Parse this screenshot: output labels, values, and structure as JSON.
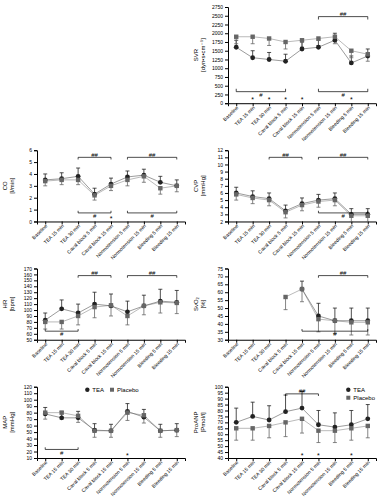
{
  "chart_data": [
    {
      "type": "line",
      "ylabel": "SVR\n[dyn•s•cm⁻⁵]",
      "categories": [
        "Baseline",
        "TEA 15 min",
        "TEA 30 min",
        "Caval block 5 min",
        "Caval block 15 min",
        "Normotension 5 min",
        "Normotension 15 min",
        "Bleeding 5 min",
        "Bleeding 15 min"
      ],
      "ylim": [
        0,
        2750
      ],
      "yticks": [
        0,
        250,
        500,
        750,
        1000,
        1250,
        1500,
        1750,
        2000,
        2250,
        2500,
        2750
      ],
      "grid": false,
      "series": [
        {
          "name": "TEA",
          "color": "#222222",
          "marker": "circle",
          "values": [
            1600,
            1300,
            1250,
            1200,
            1550,
            1600,
            1800,
            1150,
            1350
          ],
          "error_plus": [
            200,
            200,
            200,
            200,
            200,
            200,
            200,
            200,
            200
          ]
        },
        {
          "name": "Placebo",
          "color": "#666666",
          "marker": "square",
          "values": [
            1900,
            1900,
            1850,
            1750,
            1800,
            1850,
            1900,
            1500,
            1400
          ],
          "error_minus": [
            200,
            200,
            200,
            200,
            200,
            200,
            200,
            200,
            200
          ]
        }
      ],
      "annotations": [
        {
          "text": "##",
          "x": [
            "Normotension 5 min",
            "Bleeding 15 min"
          ],
          "series": "TEA"
        },
        {
          "text": "#",
          "x": [
            "Baseline",
            "Caval block 5 min"
          ],
          "series": "Placebo"
        },
        {
          "text": "#",
          "x": [
            "Normotension 5 min",
            "Bleeding 15 min"
          ],
          "series": "Placebo"
        },
        {
          "text": "*",
          "x": "TEA 15 min"
        },
        {
          "text": "*",
          "x": "TEA 30 min"
        },
        {
          "text": "*",
          "x": "Caval block 5 min"
        },
        {
          "text": "*",
          "x": "Caval block 15 min"
        },
        {
          "text": "*",
          "x": "Bleeding 5 min"
        }
      ]
    },
    {
      "type": "line",
      "ylabel": "CO\n[l/min]",
      "categories": [
        "Baseline",
        "TEA 15 min",
        "TEA 30 min",
        "Caval block 5 min",
        "Caval block 15 min",
        "Normotension 5 min",
        "Normotension 15 min",
        "Bleeding 5 min",
        "Bleeding 15 min"
      ],
      "ylim": [
        0,
        6
      ],
      "yticks": [
        0,
        1,
        2,
        3,
        4,
        5,
        6
      ],
      "grid": false,
      "series": [
        {
          "name": "TEA",
          "color": "#222222",
          "marker": "circle",
          "values": [
            3.5,
            3.6,
            3.8,
            2.3,
            3.15,
            3.75,
            3.9,
            3.3,
            3.0
          ],
          "error_plus": [
            0.5,
            0.5,
            0.7,
            0.5,
            0.5,
            0.5,
            0.5,
            0.5,
            0.5
          ]
        },
        {
          "name": "Placebo",
          "color": "#666666",
          "marker": "square",
          "values": [
            3.4,
            3.5,
            3.5,
            2.2,
            3.0,
            3.5,
            3.8,
            2.8,
            3.0
          ],
          "error_minus": [
            0.4,
            0.4,
            0.4,
            0.4,
            0.4,
            0.5,
            0.5,
            0.5,
            0.5
          ]
        }
      ],
      "annotations": [
        {
          "text": "##",
          "x": [
            "TEA 30 min",
            "Caval block 15 min"
          ],
          "series": "TEA"
        },
        {
          "text": "##",
          "x": [
            "Normotension 5 min",
            "Bleeding 15 min"
          ],
          "series": "TEA"
        },
        {
          "text": "#",
          "x": [
            "TEA 30 min",
            "Caval block 15 min"
          ],
          "series": "Placebo"
        },
        {
          "text": "#",
          "x": [
            "Normotension 5 min",
            "Bleeding 15 min"
          ],
          "series": "Placebo"
        },
        {
          "text": "*",
          "x": "Caval block 15 min"
        }
      ]
    },
    {
      "type": "line",
      "ylabel": "CVP\n[mmHg]",
      "categories": [
        "Baseline",
        "TEA 15 min",
        "TEA 30 min",
        "Caval block 5 min",
        "Caval block 15 min",
        "Normotension 5 min",
        "Normotension 15 min",
        "Bleeding 5 min",
        "Bleeding 15 min"
      ],
      "ylim": [
        2,
        12
      ],
      "yticks": [
        2,
        3,
        4,
        5,
        6,
        7,
        8,
        9,
        10,
        11,
        12
      ],
      "grid": false,
      "series": [
        {
          "name": "TEA",
          "color": "#222222",
          "marker": "circle",
          "values": [
            6.0,
            5.5,
            5.2,
            3.5,
            4.5,
            5.0,
            5.2,
            3.0,
            3.0
          ],
          "error_plus": [
            0.8,
            0.8,
            0.8,
            0.8,
            0.8,
            0.8,
            0.8,
            0.8,
            0.8
          ]
        },
        {
          "name": "Placebo",
          "color": "#666666",
          "marker": "square",
          "values": [
            5.8,
            5.3,
            5.0,
            3.3,
            4.3,
            4.8,
            5.0,
            2.8,
            2.8
          ],
          "error_minus": [
            0.8,
            0.8,
            0.8,
            0.8,
            0.8,
            0.8,
            0.8,
            0.8,
            0.8
          ]
        }
      ],
      "annotations": [
        {
          "text": "##",
          "x": [
            "TEA 30 min",
            "Caval block 15 min"
          ],
          "series": "TEA"
        },
        {
          "text": "##",
          "x": [
            "Normotension 5 min",
            "Bleeding 15 min"
          ],
          "series": "TEA"
        },
        {
          "text": "#",
          "x": [
            "Normotension 5 min",
            "Bleeding 15 min"
          ],
          "series": "Placebo"
        }
      ]
    },
    {
      "type": "line",
      "ylabel": "HR\n[bpm]",
      "categories": [
        "Baseline",
        "TEA 15 min",
        "TEA 30 min",
        "Caval block 5 min",
        "Caval block 15 min",
        "Normotension 5 min",
        "Normotension 15 min",
        "Bleeding 5 min",
        "Bleeding 15 min"
      ],
      "ylim": [
        50,
        170
      ],
      "yticks": [
        50,
        60,
        70,
        80,
        90,
        100,
        110,
        120,
        130,
        140,
        150,
        160,
        170
      ],
      "grid": false,
      "series": [
        {
          "name": "TEA",
          "color": "#222222",
          "marker": "circle",
          "values": [
            83,
            102,
            95,
            110,
            107,
            97,
            107,
            115,
            113
          ],
          "error_plus": [
            12,
            15,
            15,
            20,
            20,
            18,
            18,
            20,
            20
          ]
        },
        {
          "name": "Placebo",
          "color": "#666666",
          "marker": "square",
          "values": [
            80,
            80,
            90,
            105,
            108,
            90,
            107,
            113,
            112
          ],
          "error_minus": [
            12,
            12,
            15,
            18,
            18,
            15,
            15,
            18,
            18
          ]
        }
      ],
      "annotations": [
        {
          "text": "##",
          "x": [
            "TEA 30 min",
            "Caval block 15 min"
          ],
          "series": "TEA"
        },
        {
          "text": "##",
          "x": [
            "Normotension 5 min",
            "Bleeding 15 min"
          ],
          "series": "TEA"
        },
        {
          "text": "#",
          "x": [
            "Baseline",
            "TEA 30 min"
          ],
          "series": "Placebo"
        }
      ]
    },
    {
      "type": "line",
      "ylabel": "SvO₂\n[%]",
      "categories": [
        "Baseline",
        "TEA 15 min",
        "TEA 30 min",
        "Caval block 5 min",
        "Caval block 15 min",
        "Normotension 5 min",
        "Normotension 15 min",
        "Bleeding 5 min",
        "Bleeding 15 min"
      ],
      "ylim": [
        30,
        75
      ],
      "yticks": [
        30,
        35,
        40,
        45,
        50,
        55,
        60,
        65,
        70,
        75
      ],
      "grid": false,
      "series": [
        {
          "name": "TEA",
          "color": "#222222",
          "marker": "circle",
          "values": [
            null,
            null,
            null,
            null,
            62,
            45,
            42,
            42,
            42
          ],
          "error_plus": [
            null,
            null,
            null,
            null,
            5,
            8,
            8,
            8,
            8
          ]
        },
        {
          "name": "Placebo",
          "color": "#666666",
          "marker": "square",
          "values": [
            null,
            null,
            null,
            57,
            62,
            43,
            42,
            41,
            41
          ],
          "error_minus": [
            null,
            null,
            null,
            8,
            8,
            8,
            8,
            8,
            8
          ]
        }
      ],
      "annotations": [
        {
          "text": "##",
          "x": [
            "Normotension 5 min",
            "Bleeding 15 min"
          ],
          "series": "TEA"
        },
        {
          "text": "#",
          "x": [
            "Caval block 15 min",
            "Bleeding 15 min"
          ],
          "series": "Placebo"
        }
      ]
    },
    {
      "type": "line",
      "ylabel": "MAP\n[mmHg]",
      "categories": [
        "Baseline",
        "TEA 15 min",
        "TEA 30 min",
        "Caval block 5 min",
        "Caval block 15 min",
        "Normotension 5 min",
        "Normotension 15 min",
        "Bleeding 5 min",
        "Bleeding 15 min"
      ],
      "ylim": [
        10,
        120
      ],
      "yticks": [
        10,
        20,
        30,
        40,
        50,
        60,
        70,
        80,
        90,
        100,
        110,
        120
      ],
      "grid": false,
      "legend": "top",
      "series": [
        {
          "name": "TEA",
          "color": "#222222",
          "marker": "circle",
          "values": [
            78,
            72,
            72,
            53,
            52,
            82,
            73,
            52,
            53
          ],
          "error_plus": [
            10,
            10,
            10,
            10,
            10,
            12,
            12,
            10,
            10
          ]
        },
        {
          "name": "Placebo",
          "color": "#666666",
          "marker": "square",
          "values": [
            80,
            80,
            75,
            52,
            52,
            80,
            76,
            52,
            53
          ],
          "error_minus": [
            10,
            10,
            10,
            10,
            10,
            12,
            12,
            10,
            10
          ]
        }
      ],
      "annotations": [
        {
          "text": "#",
          "x": [
            "Baseline",
            "TEA 30 min"
          ],
          "series": "Placebo"
        },
        {
          "text": "*",
          "x": "Normotension 5 min"
        }
      ]
    },
    {
      "type": "line",
      "ylabel": "ProANP\n[Pmol/l]",
      "categories": [
        "Baseline",
        "TEA 15 min",
        "TEA 30 min",
        "Caval block 5 min",
        "Caval block 15 min",
        "Normotension 5 min",
        "Normotension 15 min",
        "Bleeding 5 min",
        "Bleeding 15 min"
      ],
      "ylim": [
        40,
        100
      ],
      "yticks": [
        40,
        45,
        50,
        55,
        60,
        65,
        70,
        75,
        80,
        85,
        90,
        95,
        100
      ],
      "grid": false,
      "legend": "top-right",
      "series": [
        {
          "name": "TEA",
          "color": "#222222",
          "marker": "circle",
          "values": [
            70,
            75,
            72,
            79,
            82,
            68,
            66,
            68,
            73
          ],
          "error_plus": [
            12,
            12,
            12,
            14,
            14,
            12,
            12,
            12,
            12
          ]
        },
        {
          "name": "Placebo",
          "color": "#666666",
          "marker": "square",
          "values": [
            65,
            65,
            67,
            70,
            73,
            63,
            63,
            65,
            67
          ],
          "error_minus": [
            10,
            10,
            10,
            12,
            12,
            10,
            10,
            10,
            10
          ]
        }
      ],
      "annotations": [
        {
          "text": "##",
          "x": [
            "Caval block 5 min",
            "Normotension 5 min"
          ],
          "series": "TEA"
        },
        {
          "text": "*",
          "x": "Caval block 15 min"
        },
        {
          "text": "*",
          "x": "Normotension 5 min"
        },
        {
          "text": "*",
          "x": "Bleeding 5 min"
        }
      ]
    }
  ]
}
